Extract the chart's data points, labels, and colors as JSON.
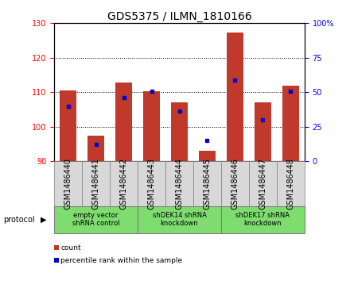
{
  "title": "GDS5375 / ILMN_1810166",
  "samples": [
    "GSM1486440",
    "GSM1486441",
    "GSM1486442",
    "GSM1486443",
    "GSM1486444",
    "GSM1486445",
    "GSM1486446",
    "GSM1486447",
    "GSM1486448"
  ],
  "count_values": [
    110.5,
    97.5,
    112.8,
    110.2,
    107.0,
    93.0,
    127.2,
    107.0,
    111.8
  ],
  "percentile_values": [
    106.0,
    95.0,
    108.5,
    110.2,
    104.5,
    96.0,
    113.5,
    102.0,
    110.2
  ],
  "ylim_left": [
    90,
    130
  ],
  "yticks_left": [
    90,
    100,
    110,
    120,
    130
  ],
  "ylim_right": [
    0,
    100
  ],
  "yticks_right": [
    0,
    25,
    50,
    75,
    100
  ],
  "bar_color": "#C0392B",
  "dot_color": "#0000CD",
  "protocol_groups": [
    {
      "label": "empty vector\nshRNA control",
      "start": 0,
      "end": 3
    },
    {
      "label": "shDEK14 shRNA\nknockdown",
      "start": 3,
      "end": 6
    },
    {
      "label": "shDEK17 shRNA\nknockdown",
      "start": 6,
      "end": 9
    }
  ],
  "protocol_label": "protocol",
  "legend_count": "count",
  "legend_percentile": "percentile rank within the sample",
  "title_fontsize": 10,
  "tick_fontsize": 7,
  "sample_fontsize": 7,
  "grid_color": "black",
  "background_color": "#D8D8D8",
  "protocol_bg_color": "#7EDD6E",
  "fig_width": 4.4,
  "fig_height": 3.63
}
